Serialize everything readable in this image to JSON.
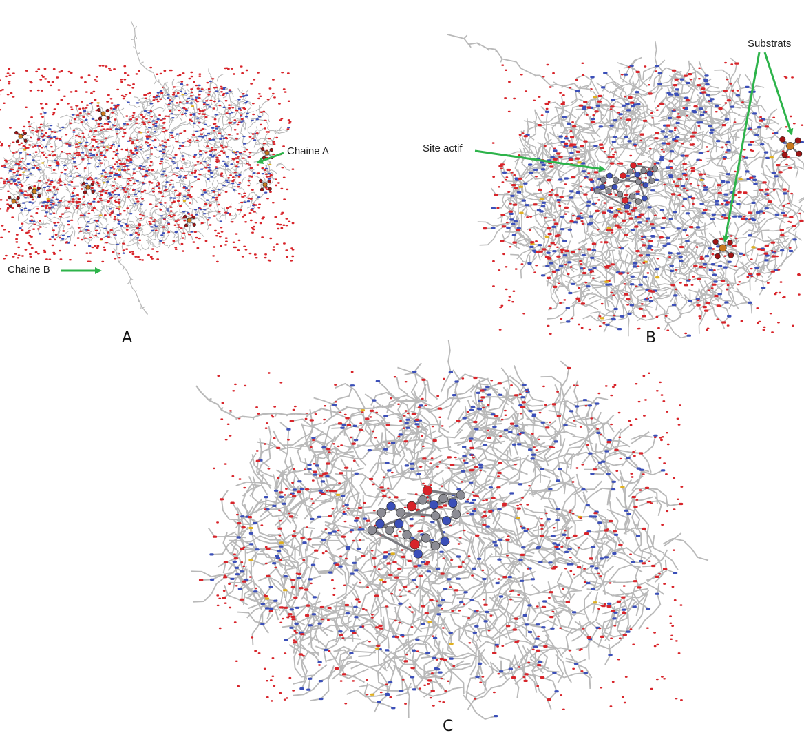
{
  "figure": {
    "panels": [
      {
        "id": "A",
        "label": "A",
        "annotations": [
          "Chaine A",
          "Chaine B"
        ]
      },
      {
        "id": "B",
        "label": "B",
        "annotations": [
          "Site actif",
          "Substrats"
        ]
      },
      {
        "id": "C",
        "label": "C",
        "annotations": []
      }
    ],
    "annotations": {
      "chain_a": "Chaine A",
      "chain_b": "Chaine B",
      "active_site": "Site actif",
      "substrates": "Substrats"
    },
    "arrow_color": "#2db34a",
    "atom_colors": {
      "carbon": "#b9b9b9",
      "nitrogen": "#3b4fb8",
      "oxygen": "#d8242a",
      "sulfur": "#e0b020",
      "ligand_carbon": "#8c8c94",
      "substrate_phosphorus": "#c8781e",
      "substrate_oxygen": "#a01414"
    },
    "background_color": "#ffffff"
  }
}
